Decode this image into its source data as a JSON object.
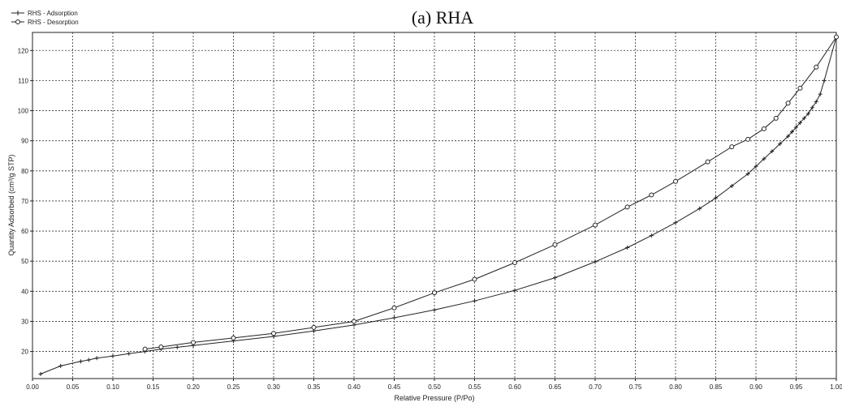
{
  "chart_data": {
    "type": "line",
    "title": "(a) RHA",
    "xlabel": "Relative Pressure (P/Po)",
    "ylabel": "Quantity Adsorbed (cm³/g STP)",
    "xlim": [
      0.0,
      1.0
    ],
    "ylim": [
      11,
      126
    ],
    "grid": true,
    "legend_position": "top-left",
    "x_ticks": [
      "0.00",
      "0.05",
      "0.10",
      "0.15",
      "0.20",
      "0.25",
      "0.30",
      "0.35",
      "0.40",
      "0.45",
      "0.50",
      "0.55",
      "0.60",
      "0.65",
      "0.70",
      "0.75",
      "0.80",
      "0.85",
      "0.90",
      "0.95",
      "1.00"
    ],
    "y_ticks": [
      "20",
      "30",
      "40",
      "50",
      "60",
      "70",
      "80",
      "90",
      "100",
      "110",
      "120"
    ],
    "series": [
      {
        "name": "RHS - Adsorption",
        "marker": "plus",
        "x": [
          0.01,
          0.035,
          0.06,
          0.07,
          0.08,
          0.1,
          0.12,
          0.14,
          0.16,
          0.18,
          0.2,
          0.25,
          0.3,
          0.35,
          0.4,
          0.45,
          0.5,
          0.55,
          0.6,
          0.65,
          0.7,
          0.74,
          0.77,
          0.8,
          0.83,
          0.85,
          0.87,
          0.89,
          0.9,
          0.91,
          0.92,
          0.93,
          0.94,
          0.945,
          0.95,
          0.955,
          0.96,
          0.965,
          0.97,
          0.975,
          0.98,
          0.985,
          1.0
        ],
        "y": [
          12.5,
          15.2,
          16.7,
          17.2,
          17.8,
          18.5,
          19.3,
          20.0,
          20.8,
          21.4,
          22.0,
          23.5,
          25.0,
          26.8,
          28.8,
          31.2,
          33.8,
          36.8,
          40.3,
          44.5,
          49.8,
          54.5,
          58.5,
          62.8,
          67.5,
          71.0,
          75.0,
          79.0,
          81.5,
          84.0,
          86.5,
          89.0,
          91.5,
          93.0,
          94.5,
          96.0,
          97.5,
          99.0,
          101.0,
          103.0,
          105.5,
          110.0,
          124.5
        ]
      },
      {
        "name": "RHS - Desorption",
        "marker": "circle",
        "x": [
          1.0,
          0.975,
          0.955,
          0.94,
          0.925,
          0.91,
          0.89,
          0.87,
          0.84,
          0.8,
          0.77,
          0.74,
          0.7,
          0.65,
          0.6,
          0.55,
          0.5,
          0.45,
          0.4,
          0.35,
          0.3,
          0.25,
          0.2,
          0.16,
          0.14
        ],
        "y": [
          124.5,
          114.5,
          107.5,
          102.5,
          97.5,
          94.0,
          90.5,
          88.0,
          83.0,
          76.5,
          72.0,
          68.0,
          62.0,
          55.5,
          49.5,
          44.0,
          39.5,
          34.5,
          30.0,
          28.0,
          26.0,
          24.5,
          23.0,
          21.5,
          20.8
        ]
      }
    ]
  }
}
